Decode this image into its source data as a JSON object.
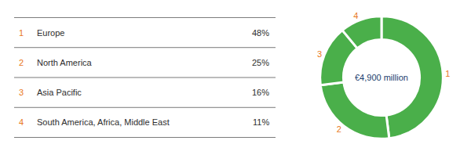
{
  "chart_data": {
    "type": "pie",
    "categories": [
      "1",
      "2",
      "3",
      "4"
    ],
    "labels": [
      "Europe",
      "North America",
      "Asia Pacific",
      "South America, Africa, Middle East"
    ],
    "values": [
      48,
      25,
      16,
      11
    ],
    "value_labels": [
      "48%",
      "25%",
      "16%",
      "11%"
    ],
    "color": "#4aaf4a",
    "annotations": [
      "€4,900 million"
    ]
  }
}
